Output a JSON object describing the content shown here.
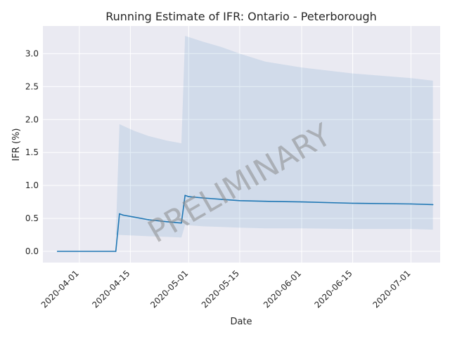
{
  "chart_data": {
    "type": "line",
    "title": "Running Estimate of IFR: Ontario - Peterborough",
    "xlabel": "Date",
    "ylabel": "IFR (%)",
    "watermark": "PRELIMINARY",
    "x_range": [
      "2020-03-22",
      "2020-07-09"
    ],
    "ylim": [
      -0.17,
      3.42
    ],
    "grid": true,
    "x_ticks": [
      "2020-04-01",
      "2020-04-15",
      "2020-05-01",
      "2020-05-15",
      "2020-06-01",
      "2020-06-15",
      "2020-07-01"
    ],
    "y_ticks": [
      0.0,
      0.5,
      1.0,
      1.5,
      2.0,
      2.5,
      3.0
    ],
    "y_tick_labels": [
      "0.0",
      "0.5",
      "1.0",
      "1.5",
      "2.0",
      "2.5",
      "3.0"
    ],
    "colors": {
      "line": "#1f77b4",
      "band": "#1f77b4",
      "grid": "#ffffff",
      "background": "#eaeaf2"
    },
    "series": [
      {
        "x": [
          "2020-03-26",
          "2020-04-11",
          "2020-04-12",
          "2020-04-13",
          "2020-04-16",
          "2020-04-20",
          "2020-04-25",
          "2020-04-29",
          "2020-04-30",
          "2020-05-01",
          "2020-05-05",
          "2020-05-10",
          "2020-05-15",
          "2020-05-22",
          "2020-06-01",
          "2020-06-15",
          "2020-07-01",
          "2020-07-07"
        ],
        "values": [
          0.0,
          0.0,
          0.57,
          0.55,
          0.52,
          0.48,
          0.45,
          0.43,
          0.85,
          0.83,
          0.81,
          0.79,
          0.77,
          0.76,
          0.75,
          0.73,
          0.72,
          0.71
        ]
      }
    ],
    "band": {
      "x": [
        "2020-04-11",
        "2020-04-12",
        "2020-04-16",
        "2020-04-20",
        "2020-04-25",
        "2020-04-29",
        "2020-04-30",
        "2020-05-05",
        "2020-05-10",
        "2020-05-15",
        "2020-05-22",
        "2020-06-01",
        "2020-06-15",
        "2020-07-01",
        "2020-07-07"
      ],
      "lower": [
        0.25,
        0.25,
        0.24,
        0.23,
        0.22,
        0.21,
        0.4,
        0.38,
        0.37,
        0.36,
        0.35,
        0.35,
        0.34,
        0.34,
        0.33
      ],
      "upper": [
        0.25,
        1.93,
        1.83,
        1.75,
        1.68,
        1.64,
        3.27,
        3.18,
        3.1,
        3.0,
        2.88,
        2.79,
        2.7,
        2.63,
        2.59
      ]
    }
  }
}
